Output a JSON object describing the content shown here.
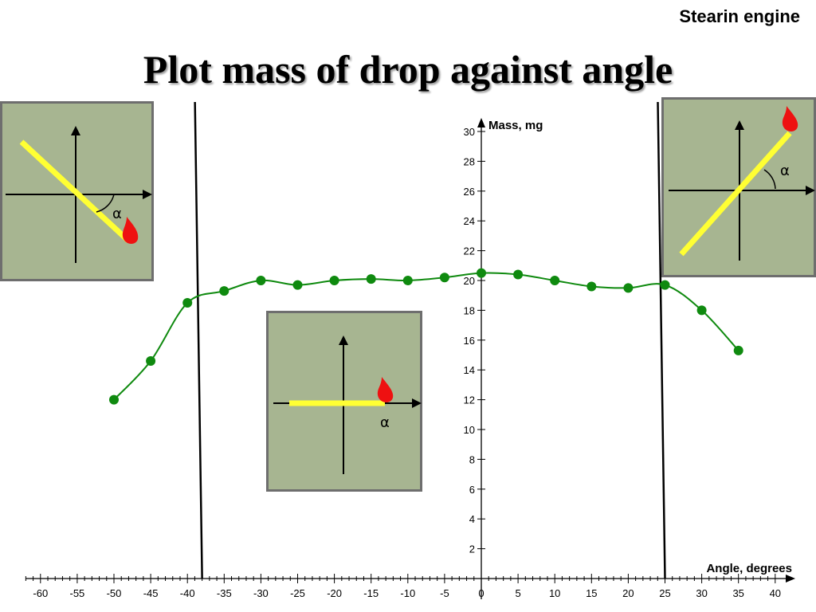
{
  "header": {
    "corner_label": "Stearin engine",
    "title": "Plot mass of drop against angle"
  },
  "insets": {
    "alpha_symbol": "α"
  },
  "colors": {
    "series": "#0f8a0f",
    "inset_bg": "#a7b591",
    "candle": "#ffff33",
    "flame": "#ee1111"
  },
  "chart_data": {
    "type": "line",
    "xlabel": "Angle, degrees",
    "ylabel": "Mass, mg",
    "xlim": [
      -62,
      42
    ],
    "ylim": [
      0,
      30
    ],
    "x_ticks": [
      -60,
      -55,
      -50,
      -45,
      -40,
      -35,
      -30,
      -25,
      -20,
      -15,
      -10,
      -5,
      0,
      5,
      10,
      15,
      20,
      25,
      30,
      35,
      40
    ],
    "y_ticks": [
      2,
      4,
      6,
      8,
      10,
      12,
      14,
      16,
      18,
      20,
      22,
      24,
      26,
      28,
      30
    ],
    "grid": false,
    "series": [
      {
        "x": [
          -50,
          -45,
          -40,
          -35,
          -30,
          -25,
          -20,
          -15,
          -10,
          -5,
          0,
          5,
          10,
          15,
          20,
          25,
          30,
          35
        ],
        "y": [
          12.0,
          14.6,
          18.5,
          19.3,
          20.0,
          19.7,
          20.0,
          20.1,
          20.0,
          20.2,
          20.5,
          20.4,
          20.0,
          19.6,
          19.5,
          19.7,
          18.0,
          15.3
        ]
      }
    ],
    "vertical_lines": [
      -38,
      25
    ]
  }
}
